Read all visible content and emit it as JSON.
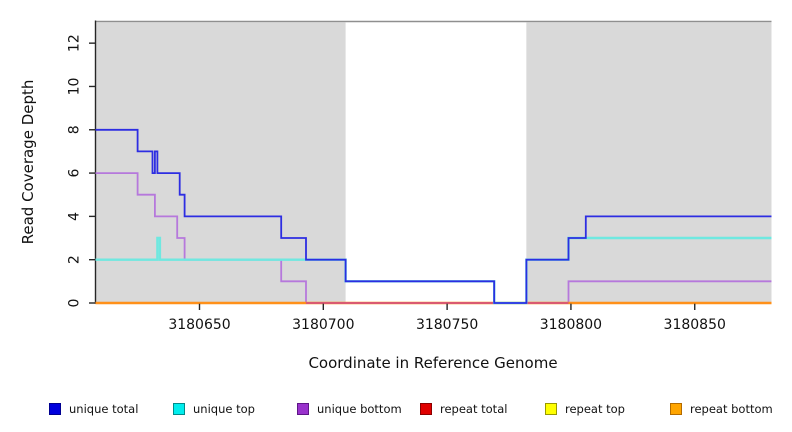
{
  "figure": {
    "background": "#ffffff"
  },
  "axes": {
    "xlabel": "Coordinate in Reference Genome",
    "ylabel": "Read Coverage Depth",
    "tick_color": "#262626",
    "spine_color": "#262626",
    "top_spine_color": "#8f8f8f"
  },
  "chart_data": {
    "type": "line",
    "step": true,
    "title": "",
    "xlabel": "Coordinate in Reference Genome",
    "ylabel": "Read Coverage Depth",
    "xlim": [
      3180608,
      3180881
    ],
    "ylim": [
      0,
      13
    ],
    "x_ticks": [
      3180650,
      3180700,
      3180750,
      3180800,
      3180850
    ],
    "y_ticks": [
      0,
      2,
      4,
      6,
      8,
      10,
      12
    ],
    "grid": false,
    "legend_position": "bottom",
    "shaded_regions": [
      {
        "x0": 3180608,
        "x1": 3180709,
        "color": "#d9d9d9"
      },
      {
        "x0": 3180782,
        "x1": 3180881,
        "color": "#d9d9d9"
      }
    ],
    "series": [
      {
        "name": "repeat total",
        "color": "#e00000",
        "width": 1.8,
        "points": [
          [
            3180608,
            0
          ],
          [
            3180881,
            0
          ]
        ]
      },
      {
        "name": "repeat top",
        "color": "#ffff00",
        "width": 1.8,
        "points": [
          [
            3180608,
            0
          ],
          [
            3180881,
            0
          ]
        ]
      },
      {
        "name": "unique bottom",
        "color": "#b678dc",
        "width": 1.8,
        "points": [
          [
            3180608,
            6
          ],
          [
            3180625,
            6
          ],
          [
            3180625,
            5
          ],
          [
            3180632,
            5
          ],
          [
            3180632,
            4
          ],
          [
            3180641,
            4
          ],
          [
            3180641,
            3
          ],
          [
            3180644,
            3
          ],
          [
            3180644,
            2
          ],
          [
            3180683,
            2
          ],
          [
            3180683,
            1
          ],
          [
            3180693,
            1
          ],
          [
            3180693,
            0
          ],
          [
            3180799,
            0
          ],
          [
            3180799,
            1
          ],
          [
            3180881,
            1
          ]
        ]
      },
      {
        "name": "repeat bottom",
        "color": "#ff9019",
        "width": 2.4,
        "points": [
          [
            3180608,
            0
          ],
          [
            3180881,
            0
          ]
        ]
      },
      {
        "name": "unique top",
        "color": "#6fe8e0",
        "width": 2.4,
        "points": [
          [
            3180608,
            2
          ],
          [
            3180633,
            2
          ],
          [
            3180633,
            3
          ],
          [
            3180634,
            3
          ],
          [
            3180634,
            2
          ],
          [
            3180709,
            2
          ],
          [
            3180709,
            1
          ],
          [
            3180769,
            1
          ],
          [
            3180769,
            0
          ],
          [
            3180782,
            0
          ],
          [
            3180782,
            2
          ],
          [
            3180799,
            2
          ],
          [
            3180799,
            3
          ],
          [
            3180881,
            3
          ]
        ]
      },
      {
        "name": "unique total",
        "color": "#2d2de2",
        "width": 1.8,
        "points": [
          [
            3180608,
            8
          ],
          [
            3180625,
            8
          ],
          [
            3180625,
            7
          ],
          [
            3180631,
            7
          ],
          [
            3180631,
            6
          ],
          [
            3180632,
            6
          ],
          [
            3180632,
            7
          ],
          [
            3180633,
            7
          ],
          [
            3180633,
            6
          ],
          [
            3180642,
            6
          ],
          [
            3180642,
            5
          ],
          [
            3180644,
            5
          ],
          [
            3180644,
            4
          ],
          [
            3180683,
            4
          ],
          [
            3180683,
            3
          ],
          [
            3180693,
            3
          ],
          [
            3180693,
            2
          ],
          [
            3180709,
            2
          ],
          [
            3180709,
            1
          ],
          [
            3180769,
            1
          ],
          [
            3180769,
            0
          ],
          [
            3180782,
            0
          ],
          [
            3180782,
            2
          ],
          [
            3180799,
            2
          ],
          [
            3180799,
            3
          ],
          [
            3180806,
            3
          ],
          [
            3180806,
            4
          ],
          [
            3180881,
            4
          ]
        ]
      }
    ],
    "zero_overlap_segment": {
      "x0": 3180693,
      "x1": 3180799,
      "y": 0,
      "color": "#d5527e"
    }
  },
  "legend": {
    "items": [
      {
        "label": "unique total",
        "fill": "#0000dd",
        "border": "#000090"
      },
      {
        "label": "unique top",
        "fill": "#00eded",
        "border": "#008b8b"
      },
      {
        "label": "unique bottom",
        "fill": "#9932cc",
        "border": "#5e1687"
      },
      {
        "label": "repeat total",
        "fill": "#e00000",
        "border": "#8b0000"
      },
      {
        "label": "repeat top",
        "fill": "#ffff00",
        "border": "#999900"
      },
      {
        "label": "repeat bottom",
        "fill": "#ffa500",
        "border": "#b36b00"
      }
    ]
  }
}
